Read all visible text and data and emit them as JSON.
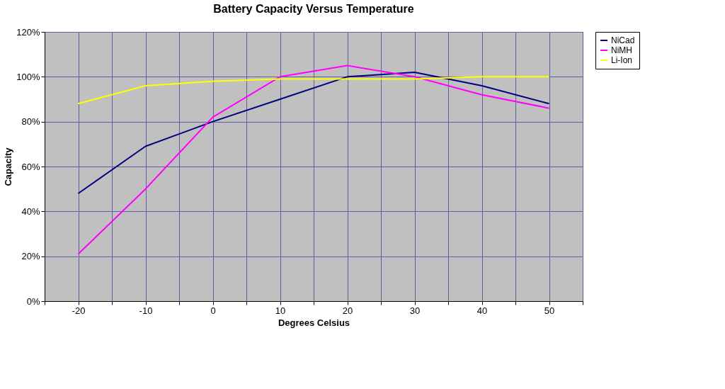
{
  "chart_data": {
    "type": "line",
    "title": "Battery Capacity Versus Temperature",
    "xlabel": "Degrees Celsius",
    "ylabel": "Capacity",
    "x": [
      -20,
      -10,
      0,
      10,
      20,
      30,
      40,
      50
    ],
    "series": [
      {
        "name": "NiCad",
        "color": "#000080",
        "values": [
          48,
          69,
          80,
          90,
          100,
          102,
          96,
          88
        ]
      },
      {
        "name": "NiMH",
        "color": "#ff00ff",
        "values": [
          21,
          50,
          82,
          100,
          105,
          100,
          92,
          86
        ]
      },
      {
        "name": "Li-Ion",
        "color": "#ffff00",
        "values": [
          88,
          96,
          98,
          99,
          99,
          99,
          100,
          100
        ]
      }
    ],
    "xlim": [
      -25,
      55
    ],
    "xticks": [
      {
        "value": -25,
        "label": null
      },
      -20,
      {
        "value": -15,
        "label": null
      },
      -10,
      {
        "value": -5,
        "label": null
      },
      0,
      {
        "value": 5,
        "label": null
      },
      10,
      {
        "value": 15,
        "label": null
      },
      20,
      {
        "value": 25,
        "label": null
      },
      30,
      {
        "value": 35,
        "label": null
      },
      40,
      {
        "value": 45,
        "label": null
      },
      50,
      {
        "value": 55,
        "label": null
      }
    ],
    "ylim": [
      0,
      120
    ],
    "yticks": [
      {
        "value": 0,
        "label": "0%"
      },
      {
        "value": 20,
        "label": "20%"
      },
      {
        "value": 40,
        "label": "40%"
      },
      {
        "value": 60,
        "label": "60%"
      },
      {
        "value": 80,
        "label": "80%"
      },
      {
        "value": 100,
        "label": "100%"
      },
      {
        "value": 120,
        "label": "120%"
      }
    ],
    "grid": true,
    "legend": "right",
    "marker": "none",
    "line_style": "solid"
  }
}
